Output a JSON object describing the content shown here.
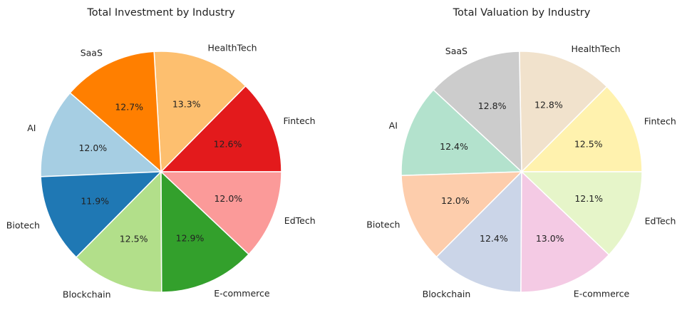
{
  "chart_data": [
    {
      "type": "pie",
      "title": "Total Investment by Industry",
      "start_angle_deg": 0,
      "direction": "counterclockwise",
      "slices": [
        {
          "label": "Fintech",
          "value": 12.6,
          "pct_label": "12.6%",
          "color": "#e31a1c"
        },
        {
          "label": "HealthTech",
          "value": 13.3,
          "pct_label": "13.3%",
          "color": "#fdbf6f"
        },
        {
          "label": "SaaS",
          "value": 12.7,
          "pct_label": "12.7%",
          "color": "#ff7f00"
        },
        {
          "label": "AI",
          "value": 12.0,
          "pct_label": "12.0%",
          "color": "#a6cee3"
        },
        {
          "label": "Biotech",
          "value": 11.9,
          "pct_label": "11.9%",
          "color": "#1f78b4"
        },
        {
          "label": "Blockchain",
          "value": 12.5,
          "pct_label": "12.5%",
          "color": "#b2df8a"
        },
        {
          "label": "E-commerce",
          "value": 12.9,
          "pct_label": "12.9%",
          "color": "#33a02c"
        },
        {
          "label": "EdTech",
          "value": 12.0,
          "pct_label": "12.0%",
          "color": "#fb9a99"
        }
      ]
    },
    {
      "type": "pie",
      "title": "Total Valuation by Industry",
      "start_angle_deg": 0,
      "direction": "counterclockwise",
      "slices": [
        {
          "label": "Fintech",
          "value": 12.5,
          "pct_label": "12.5%",
          "color": "#fff2ae"
        },
        {
          "label": "HealthTech",
          "value": 12.8,
          "pct_label": "12.8%",
          "color": "#f1e2cc"
        },
        {
          "label": "SaaS",
          "value": 12.8,
          "pct_label": "12.8%",
          "color": "#cccccc"
        },
        {
          "label": "AI",
          "value": 12.4,
          "pct_label": "12.4%",
          "color": "#b3e2cd"
        },
        {
          "label": "Biotech",
          "value": 12.0,
          "pct_label": "12.0%",
          "color": "#fdcdac"
        },
        {
          "label": "Blockchain",
          "value": 12.4,
          "pct_label": "12.4%",
          "color": "#cbd5e8"
        },
        {
          "label": "E-commerce",
          "value": 13.0,
          "pct_label": "13.0%",
          "color": "#f4cae4"
        },
        {
          "label": "EdTech",
          "value": 12.1,
          "pct_label": "12.1%",
          "color": "#e6f5c9"
        }
      ]
    }
  ]
}
